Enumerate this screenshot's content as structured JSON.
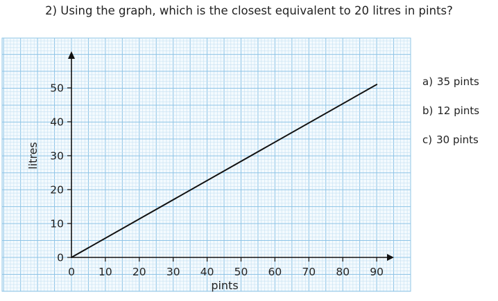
{
  "question": {
    "number": "2)",
    "text": "Using the graph, which is the closest equivalent to 20 litres in pints?"
  },
  "options": [
    {
      "letter": "a)",
      "text": "35 pints"
    },
    {
      "letter": "b)",
      "text": "12 pints"
    },
    {
      "letter": "c)",
      "text": "30 pints"
    }
  ],
  "colors": {
    "grid_minor": "#c5e1f2",
    "grid_major": "#8ec4e6",
    "axis": "#111111",
    "line": "#111111"
  },
  "chart_data": {
    "type": "line",
    "title": "",
    "xlabel": "pints",
    "ylabel": "litres",
    "xlim": [
      0,
      90
    ],
    "ylim": [
      0,
      50
    ],
    "x_ticks": [
      0,
      10,
      20,
      30,
      40,
      50,
      60,
      70,
      80,
      90
    ],
    "y_ticks": [
      0,
      10,
      20,
      30,
      40,
      50
    ],
    "grid": true,
    "series": [
      {
        "x": [
          0,
          90
        ],
        "y": [
          0,
          51
        ]
      }
    ]
  }
}
